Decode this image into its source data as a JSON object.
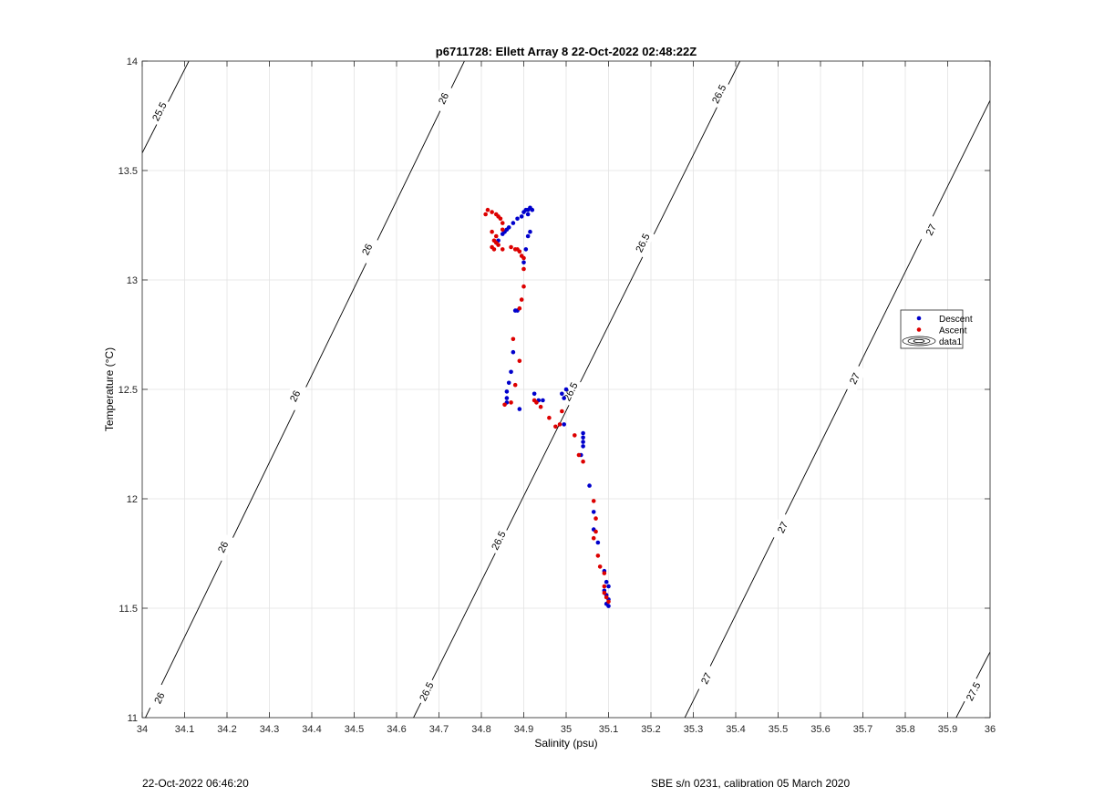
{
  "chart_data": {
    "type": "scatter",
    "title": "p6711728: Ellett Array 8 22-Oct-2022 02:48:22Z",
    "xlabel": "Salinity (psu)",
    "ylabel": "Temperature (°C)",
    "xlim": [
      34,
      36
    ],
    "ylim": [
      11,
      14
    ],
    "xticks": [
      "34",
      "34.1",
      "34.2",
      "34.3",
      "34.4",
      "34.5",
      "34.6",
      "34.7",
      "34.8",
      "34.9",
      "35",
      "35.1",
      "35.2",
      "35.3",
      "35.4",
      "35.5",
      "35.6",
      "35.7",
      "35.8",
      "35.9",
      "36"
    ],
    "yticks": [
      "11",
      "11.5",
      "12",
      "12.5",
      "13",
      "13.5",
      "14"
    ],
    "grid": true,
    "legend_position": "east",
    "legend": [
      {
        "label": "Descent",
        "color": "#0000cc",
        "marker": "dot"
      },
      {
        "label": "Ascent",
        "color": "#dd0000",
        "marker": "dot"
      },
      {
        "label": "data1",
        "color": "#000000",
        "marker": "contour"
      }
    ],
    "isopycnals": [
      {
        "sigma": 25.5,
        "x": [
          34.0,
          34.11
        ],
        "y": [
          13.58,
          14.0
        ],
        "labels": [
          {
            "text": "25.5",
            "x": 34.04,
            "y": 13.77
          }
        ]
      },
      {
        "sigma": 26.0,
        "x": [
          34.0,
          34.76
        ],
        "y": [
          10.97,
          14.0
        ],
        "labels": [
          {
            "text": "26",
            "x": 34.04,
            "y": 11.09
          },
          {
            "text": "26",
            "x": 34.19,
            "y": 11.78
          },
          {
            "text": "26",
            "x": 34.36,
            "y": 12.47
          },
          {
            "text": "26",
            "x": 34.53,
            "y": 13.14
          },
          {
            "text": "26",
            "x": 34.71,
            "y": 13.83
          }
        ]
      },
      {
        "sigma": 26.5,
        "x": [
          34.64,
          35.41
        ],
        "y": [
          11.0,
          14.0
        ],
        "labels": [
          {
            "text": "26.5",
            "x": 34.67,
            "y": 11.12
          },
          {
            "text": "26.5",
            "x": 34.84,
            "y": 11.81
          },
          {
            "text": "26.5",
            "x": 35.01,
            "y": 12.49
          },
          {
            "text": "26.5",
            "x": 35.18,
            "y": 13.17
          },
          {
            "text": "26.5",
            "x": 35.36,
            "y": 13.85
          }
        ]
      },
      {
        "sigma": 27.0,
        "x": [
          35.28,
          36.0
        ],
        "y": [
          11.0,
          13.82
        ],
        "labels": [
          {
            "text": "27",
            "x": 35.33,
            "y": 11.18
          },
          {
            "text": "27",
            "x": 35.51,
            "y": 11.87
          },
          {
            "text": "27",
            "x": 35.68,
            "y": 12.55
          },
          {
            "text": "27",
            "x": 35.86,
            "y": 13.23
          }
        ]
      },
      {
        "sigma": 27.5,
        "x": [
          35.92,
          36.0
        ],
        "y": [
          11.0,
          11.3
        ],
        "labels": [
          {
            "text": "27.5",
            "x": 35.96,
            "y": 11.12
          }
        ]
      }
    ],
    "series": [
      {
        "name": "Descent",
        "color": "#0000cc",
        "points": [
          [
            34.9,
            13.31
          ],
          [
            34.905,
            13.32
          ],
          [
            34.91,
            13.32
          ],
          [
            34.915,
            13.33
          ],
          [
            34.92,
            13.32
          ],
          [
            34.91,
            13.3
          ],
          [
            34.895,
            13.29
          ],
          [
            34.885,
            13.28
          ],
          [
            34.875,
            13.26
          ],
          [
            34.865,
            13.24
          ],
          [
            34.86,
            13.23
          ],
          [
            34.855,
            13.22
          ],
          [
            34.85,
            13.21
          ],
          [
            34.84,
            13.18
          ],
          [
            34.915,
            13.22
          ],
          [
            34.91,
            13.2
          ],
          [
            34.905,
            13.14
          ],
          [
            34.9,
            13.08
          ],
          [
            34.88,
            12.86
          ],
          [
            34.885,
            12.86
          ],
          [
            34.875,
            12.67
          ],
          [
            34.87,
            12.58
          ],
          [
            34.865,
            12.53
          ],
          [
            34.86,
            12.49
          ],
          [
            34.86,
            12.46
          ],
          [
            34.86,
            12.44
          ],
          [
            34.89,
            12.41
          ],
          [
            34.925,
            12.48
          ],
          [
            34.935,
            12.45
          ],
          [
            34.945,
            12.45
          ],
          [
            34.99,
            12.48
          ],
          [
            35.0,
            12.5
          ],
          [
            34.995,
            12.46
          ],
          [
            34.995,
            12.34
          ],
          [
            35.04,
            12.3
          ],
          [
            35.04,
            12.28
          ],
          [
            35.04,
            12.26
          ],
          [
            35.04,
            12.24
          ],
          [
            35.035,
            12.2
          ],
          [
            35.055,
            12.06
          ],
          [
            35.065,
            11.94
          ],
          [
            35.065,
            11.86
          ],
          [
            35.075,
            11.8
          ],
          [
            35.09,
            11.67
          ],
          [
            35.09,
            11.58
          ],
          [
            35.095,
            11.62
          ],
          [
            35.1,
            11.6
          ],
          [
            35.095,
            11.56
          ],
          [
            35.1,
            11.54
          ],
          [
            35.095,
            11.52
          ],
          [
            35.1,
            11.51
          ]
        ]
      },
      {
        "name": "Ascent",
        "color": "#dd0000",
        "points": [
          [
            34.815,
            13.32
          ],
          [
            34.81,
            13.3
          ],
          [
            34.825,
            13.31
          ],
          [
            34.835,
            13.3
          ],
          [
            34.84,
            13.29
          ],
          [
            34.845,
            13.28
          ],
          [
            34.85,
            13.26
          ],
          [
            34.85,
            13.23
          ],
          [
            34.825,
            13.22
          ],
          [
            34.835,
            13.2
          ],
          [
            34.83,
            13.18
          ],
          [
            34.835,
            13.17
          ],
          [
            34.84,
            13.16
          ],
          [
            34.825,
            13.15
          ],
          [
            34.83,
            13.14
          ],
          [
            34.85,
            13.14
          ],
          [
            34.87,
            13.15
          ],
          [
            34.88,
            13.14
          ],
          [
            34.885,
            13.14
          ],
          [
            34.89,
            13.13
          ],
          [
            34.895,
            13.11
          ],
          [
            34.9,
            13.1
          ],
          [
            34.9,
            13.05
          ],
          [
            34.9,
            12.97
          ],
          [
            34.895,
            12.91
          ],
          [
            34.89,
            12.87
          ],
          [
            34.875,
            12.73
          ],
          [
            34.89,
            12.63
          ],
          [
            34.88,
            12.52
          ],
          [
            34.855,
            12.43
          ],
          [
            34.87,
            12.44
          ],
          [
            34.925,
            12.45
          ],
          [
            34.93,
            12.44
          ],
          [
            34.94,
            12.42
          ],
          [
            34.96,
            12.37
          ],
          [
            34.975,
            12.33
          ],
          [
            34.985,
            12.34
          ],
          [
            34.99,
            12.4
          ],
          [
            35.02,
            12.29
          ],
          [
            35.03,
            12.2
          ],
          [
            35.04,
            12.17
          ],
          [
            35.065,
            11.99
          ],
          [
            35.07,
            11.91
          ],
          [
            35.07,
            11.85
          ],
          [
            35.065,
            11.82
          ],
          [
            35.075,
            11.74
          ],
          [
            35.08,
            11.69
          ],
          [
            35.09,
            11.66
          ],
          [
            35.09,
            11.6
          ],
          [
            35.09,
            11.57
          ],
          [
            35.095,
            11.55
          ],
          [
            35.1,
            11.53
          ]
        ]
      }
    ]
  },
  "footer": {
    "left": "22-Oct-2022 06:46:20",
    "right": "SBE s/n 0231, calibration 05 March 2020"
  }
}
